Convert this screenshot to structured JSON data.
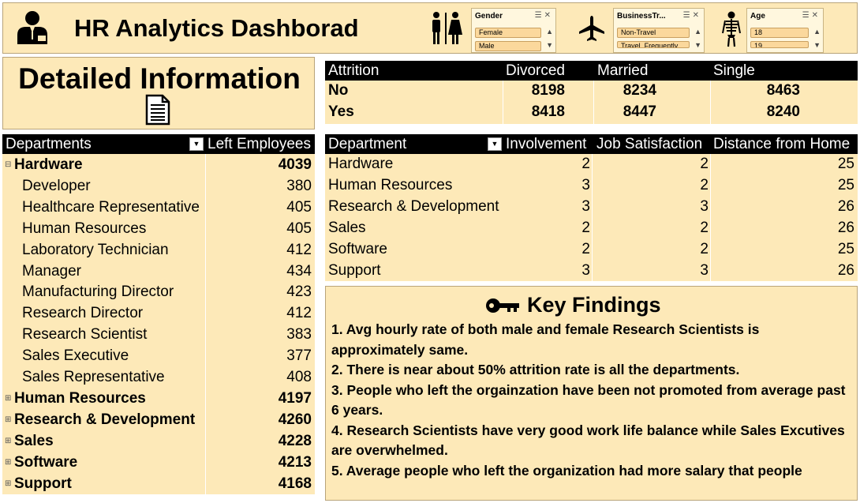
{
  "header": {
    "title": "HR Analytics Dashborad",
    "slicers": [
      {
        "title": "Gender",
        "items": [
          "Female",
          "Male"
        ]
      },
      {
        "title": "BusinessTr...",
        "items": [
          "Non-Travel",
          "Travel_Frequently"
        ]
      },
      {
        "title": "Age",
        "items": [
          "18",
          "19"
        ]
      }
    ]
  },
  "detail": {
    "title": "Detailed Information"
  },
  "departments_table": {
    "headers": [
      "Departments",
      "Left Employees"
    ],
    "rows": [
      {
        "label": "Hardware",
        "value": "4039",
        "level": 0,
        "expanded": true
      },
      {
        "label": "Developer",
        "value": "380",
        "level": 1
      },
      {
        "label": "Healthcare Representative",
        "value": "405",
        "level": 1
      },
      {
        "label": "Human Resources",
        "value": "405",
        "level": 1
      },
      {
        "label": "Laboratory Technician",
        "value": "412",
        "level": 1
      },
      {
        "label": "Manager",
        "value": "434",
        "level": 1
      },
      {
        "label": "Manufacturing Director",
        "value": "423",
        "level": 1
      },
      {
        "label": "Research Director",
        "value": "412",
        "level": 1
      },
      {
        "label": "Research Scientist",
        "value": "383",
        "level": 1
      },
      {
        "label": "Sales Executive",
        "value": "377",
        "level": 1
      },
      {
        "label": "Sales Representative",
        "value": "408",
        "level": 1
      },
      {
        "label": "Human Resources",
        "value": "4197",
        "level": 0
      },
      {
        "label": "Research & Development",
        "value": "4260",
        "level": 0
      },
      {
        "label": "Sales",
        "value": "4228",
        "level": 0
      },
      {
        "label": "Software",
        "value": "4213",
        "level": 0
      },
      {
        "label": "Support",
        "value": "4168",
        "level": 0
      }
    ]
  },
  "attrition_table": {
    "headers": [
      "Attrition",
      "Divorced",
      "Married",
      "Single"
    ],
    "rows": [
      [
        "No",
        "8198",
        "8234",
        "8463"
      ],
      [
        "Yes",
        "8418",
        "8447",
        "8240"
      ]
    ]
  },
  "dept_metrics_table": {
    "headers": [
      "Department",
      "Involvement",
      "Job Satisfaction",
      "Distance from Home"
    ],
    "rows": [
      [
        "Hardware",
        "2",
        "2",
        "25"
      ],
      [
        "Human Resources",
        "3",
        "2",
        "25"
      ],
      [
        "Research & Development",
        "3",
        "3",
        "26"
      ],
      [
        "Sales",
        "2",
        "2",
        "26"
      ],
      [
        "Software",
        "2",
        "2",
        "25"
      ],
      [
        "Support",
        "3",
        "3",
        "26"
      ]
    ]
  },
  "key_findings": {
    "title": "Key Findings",
    "items": [
      "1. Avg hourly rate of both male and female Research Scientists is approximately same.",
      "2. There is near about 50% attrition rate is all the departments.",
      "3. People who left the orgainzation have been not promoted from average past 6 years.",
      "4. Research Scientists have very good work life balance while Sales Excutives are overwhelmed.",
      "5. Average people who left the organization had more salary that people"
    ]
  }
}
